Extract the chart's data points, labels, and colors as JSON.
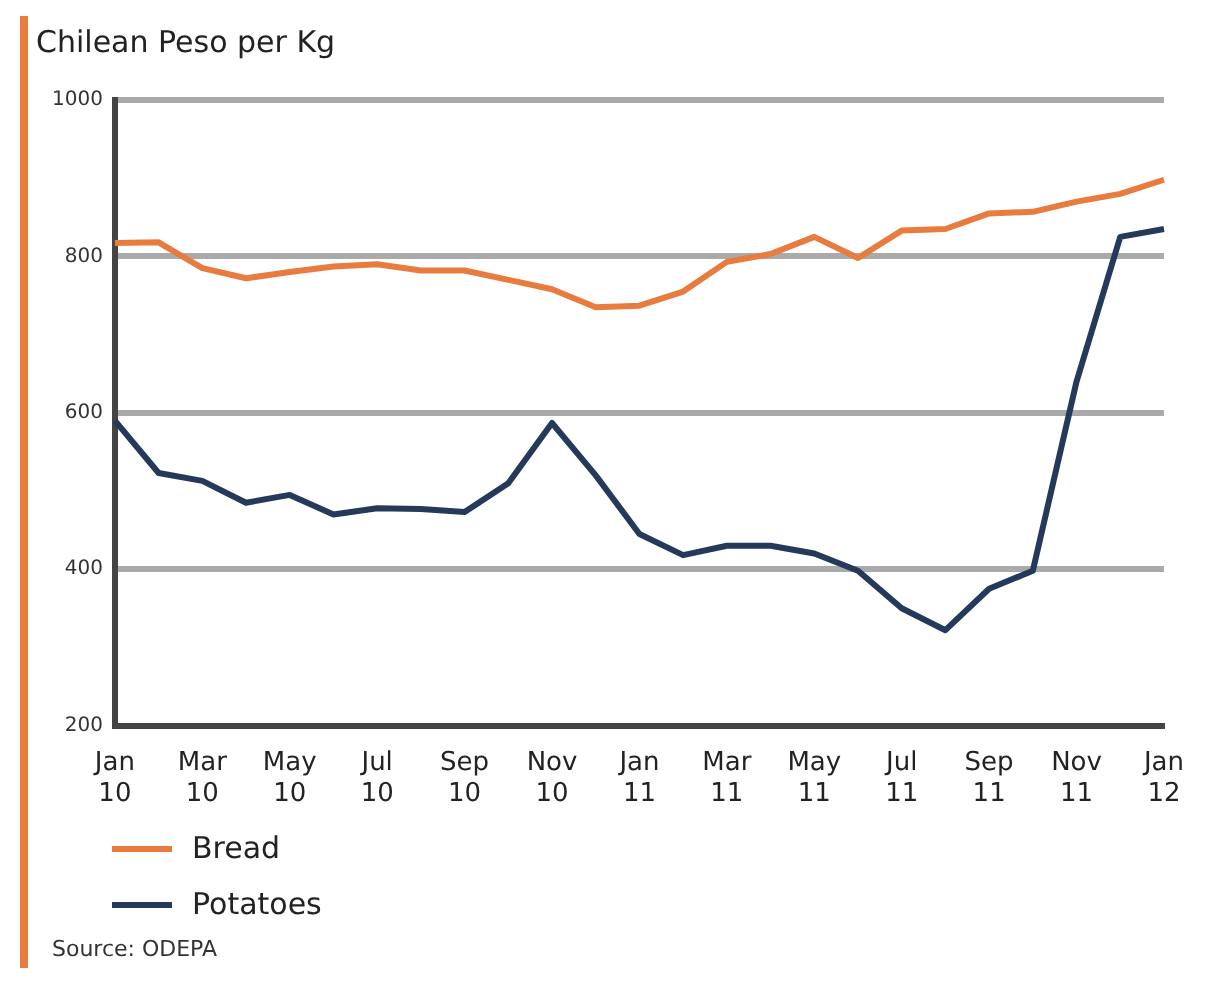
{
  "chart_data": {
    "type": "line",
    "title": "Chilean Peso per Kg",
    "categories": [
      "Jan 10",
      null,
      "Mar 10",
      null,
      "May 10",
      null,
      "Jul 10",
      null,
      "Sep 10",
      null,
      "Nov 10",
      null,
      "Jan 11",
      null,
      "Mar 11",
      null,
      "May 11",
      null,
      "Jul 11",
      null,
      "Sep 11",
      null,
      "Nov 11",
      null,
      "Jan 12"
    ],
    "series": [
      {
        "name": "Bread",
        "color": "#e87c3e",
        "values": [
          817,
          818,
          785,
          772,
          780,
          787,
          790,
          782,
          782,
          770,
          758,
          735,
          737,
          755,
          793,
          803,
          825,
          798,
          833,
          835,
          855,
          857,
          870,
          880,
          898
        ]
      },
      {
        "name": "Potatoes",
        "color": "#253a5a",
        "values": [
          590,
          523,
          513,
          485,
          495,
          470,
          478,
          477,
          473,
          510,
          587,
          520,
          445,
          418,
          430,
          430,
          420,
          398,
          350,
          322,
          375,
          398,
          640,
          825,
          835
        ]
      }
    ],
    "ylim": [
      200,
      1000
    ],
    "yticks": [
      200,
      400,
      600,
      800,
      1000
    ],
    "grid": "y",
    "legend": "bottom left",
    "marker": "none",
    "line_style": "solid",
    "annotations": [
      "Source: ODEPA"
    ]
  }
}
